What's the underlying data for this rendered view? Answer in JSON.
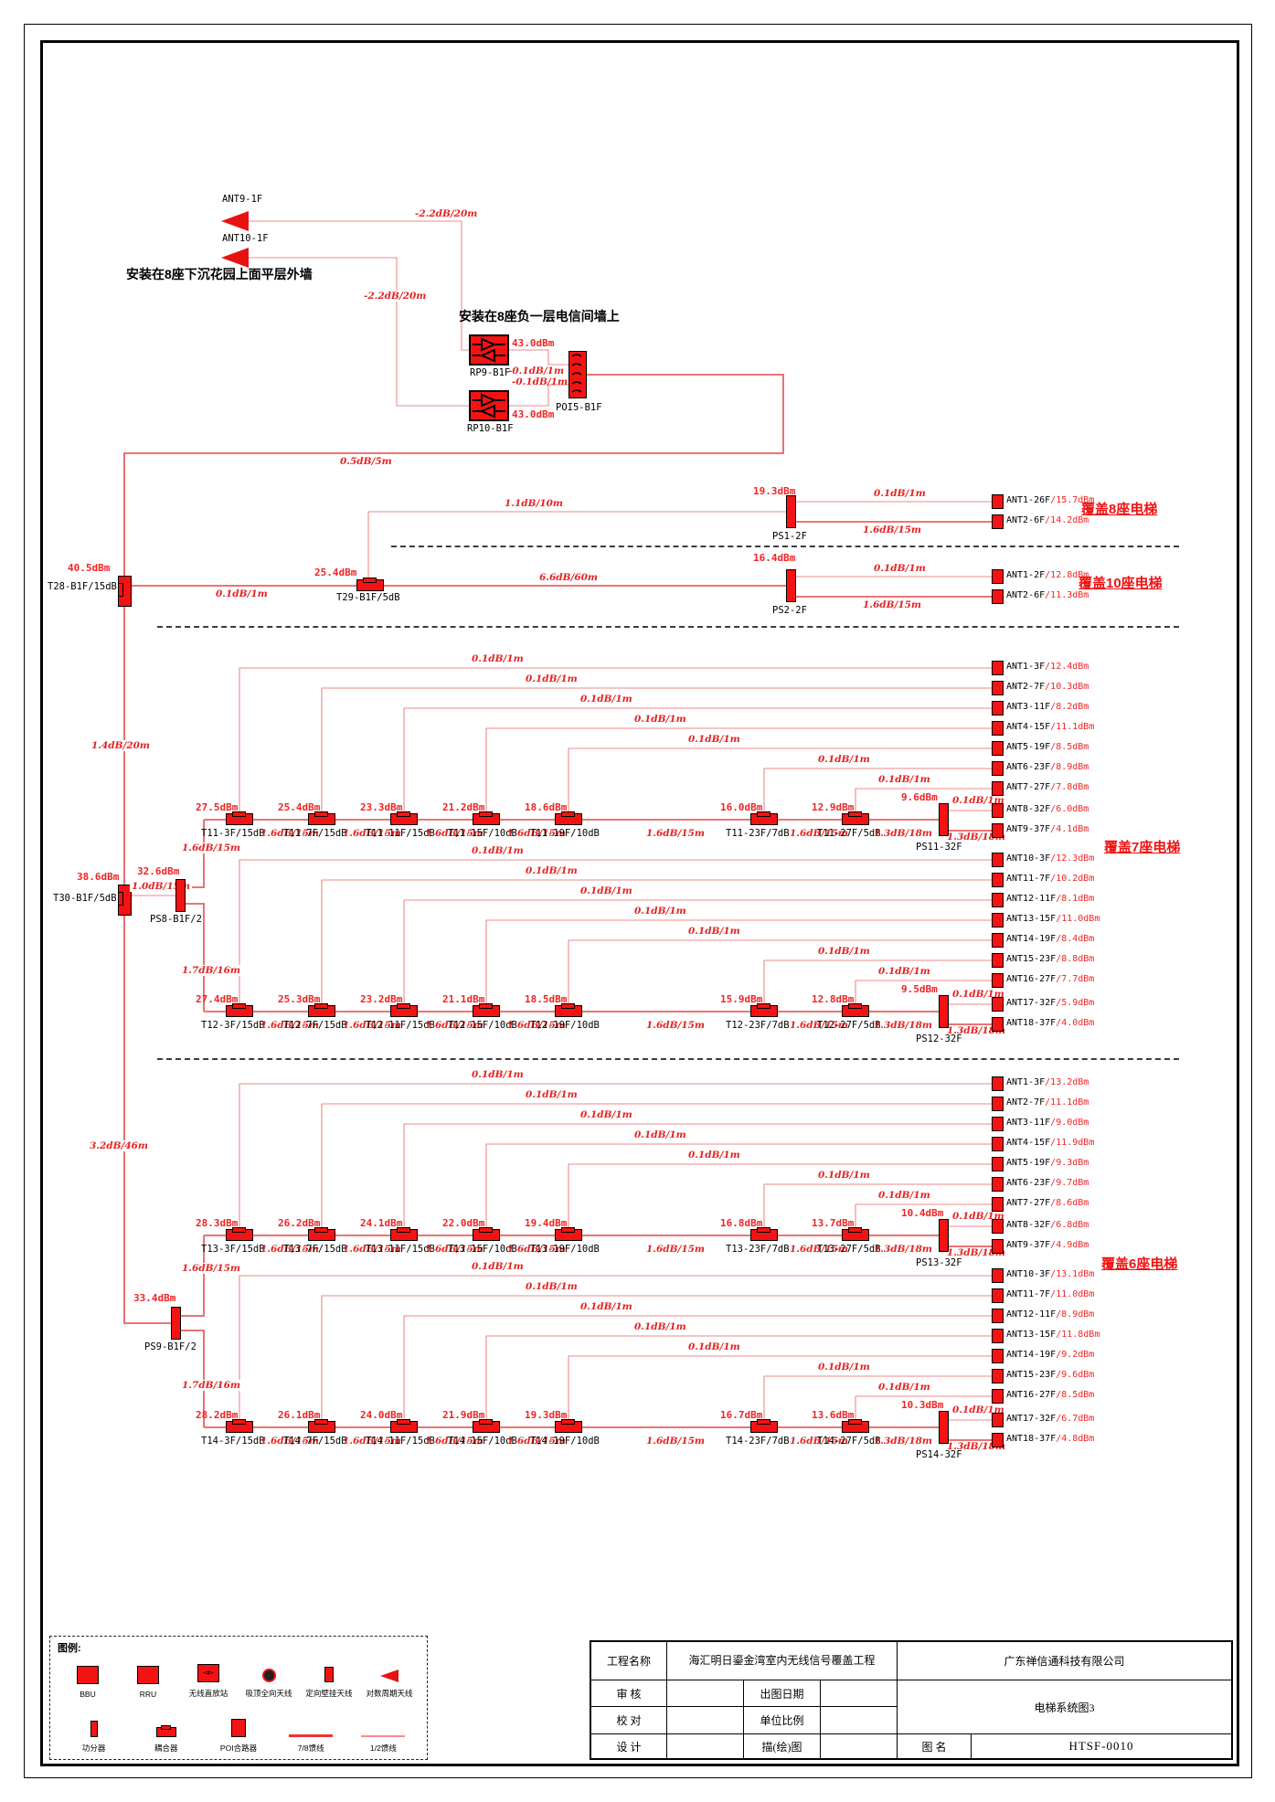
{
  "top": {
    "ant9": {
      "name": "ANT9-1F"
    },
    "ant10": {
      "name": "ANT10-1F"
    },
    "note_garden": "安装在8座下沉花园上面平层外墙",
    "note_telecom": "安装在8座负一层电信间墙上",
    "cable_ant9": "-2.2dB/20m",
    "cable_ant10": "-2.2dB/20m",
    "rp9": {
      "name": "RP9-B1F",
      "dbm": "43.0dBm",
      "out_cable": "-0.1dB/1m"
    },
    "rp10": {
      "name": "RP10-B1F",
      "dbm": "43.0dBm",
      "out_cable": "-0.1dB/1m"
    },
    "poi": {
      "name": "POI5-B1F",
      "out_cable": "0.5dB/5m"
    }
  },
  "risers": {
    "t28": {
      "name": "T28-B1F/15dB",
      "dbm": "40.5dBm"
    },
    "c_t28_t29": "0.1dB/1m",
    "t29": {
      "name": "T29-B1F/5dB",
      "dbm": "25.4dBm"
    },
    "c_t29_ps1": "1.1dB/10m",
    "c_t29_ps2": "6.6dB/60m",
    "ps1": {
      "name": "PS1-2F",
      "dbm": "19.3dBm",
      "title": "覆盖8座电梯",
      "outs": [
        {
          "cable": "0.1dB/1m",
          "ant": "ANT1-26F",
          "dbm": "/15.7dBm"
        },
        {
          "cable": "1.6dB/15m",
          "ant": "ANT2-6F",
          "dbm": "/14.2dBm"
        }
      ]
    },
    "ps2": {
      "name": "PS2-2F",
      "dbm": "16.4dBm",
      "title": "覆盖10座电梯",
      "outs": [
        {
          "cable": "0.1dB/1m",
          "ant": "ANT1-2F",
          "dbm": "/12.8dBm"
        },
        {
          "cable": "1.6dB/15m",
          "ant": "ANT2-6F",
          "dbm": "/11.3dBm"
        }
      ]
    },
    "trunk_t28_t30": "1.4dB/20m",
    "trunk_t30_ps9": "3.2dB/46m",
    "t30": {
      "name": "T30-B1F/5dB",
      "dbm": "38.6dBm"
    },
    "c_t30_ps8": "1.0dB/15m",
    "ps8": {
      "name": "PS8-B1F/2",
      "dbm": "32.6dBm",
      "up": "1.6dB/15m",
      "down": "1.7dB/16m"
    },
    "ps9": {
      "name": "PS9-B1F/2",
      "dbm": "33.4dBm",
      "up": "1.6dB/15m",
      "down": "1.7dB/16m"
    }
  },
  "trees": [
    {
      "title": "覆盖7座电梯",
      "chains": [
        {
          "inter_cable": "1.6dB/15m",
          "couplers": [
            {
              "dbm": "27.5dBm",
              "name": "T11-3F/15dB"
            },
            {
              "dbm": "25.4dBm",
              "name": "T11-7F/15dB"
            },
            {
              "dbm": "23.3dBm",
              "name": "T11-11F/15dB"
            },
            {
              "dbm": "21.2dBm",
              "name": "T11-15F/10dB"
            },
            {
              "dbm": "18.6dBm",
              "name": "T11-19F/10dB"
            },
            {
              "dbm": "16.0dBm",
              "name": "T11-23F/7dB"
            },
            {
              "dbm": "12.9dBm",
              "name": "T11-27F/5dB"
            }
          ],
          "taps": [
            {
              "cable": "0.1dB/1m",
              "ant": "ANT1-3F",
              "dbm": "/12.4dBm"
            },
            {
              "cable": "0.1dB/1m",
              "ant": "ANT2-7F",
              "dbm": "/10.3dBm"
            },
            {
              "cable": "0.1dB/1m",
              "ant": "ANT3-11F",
              "dbm": "/8.2dBm"
            },
            {
              "cable": "0.1dB/1m",
              "ant": "ANT4-15F",
              "dbm": "/11.1dBm"
            },
            {
              "cable": "0.1dB/1m",
              "ant": "ANT5-19F",
              "dbm": "/8.5dBm"
            },
            {
              "cable": "0.1dB/1m",
              "ant": "ANT6-23F",
              "dbm": "/8.9dBm"
            },
            {
              "cable": "0.1dB/1m",
              "ant": "ANT7-27F",
              "dbm": "/7.8dBm"
            }
          ],
          "end": {
            "cable": "1.3dB/18m",
            "ps": "PS11-32F",
            "dbm": "9.6dBm",
            "outs": [
              {
                "cable": "0.1dB/1m",
                "ant": "ANT8-32F",
                "dbm": "/6.0dBm"
              },
              {
                "cable": "1.3dB/18m",
                "ant": "ANT9-37F",
                "dbm": "/4.1dBm"
              }
            ]
          }
        },
        {
          "inter_cable": "1.6dB/15m",
          "couplers": [
            {
              "dbm": "27.4dBm",
              "name": "T12-3F/15dB"
            },
            {
              "dbm": "25.3dBm",
              "name": "T12-7F/15dB"
            },
            {
              "dbm": "23.2dBm",
              "name": "T12-11F/15dB"
            },
            {
              "dbm": "21.1dBm",
              "name": "T12-15F/10dB"
            },
            {
              "dbm": "18.5dBm",
              "name": "T12-19F/10dB"
            },
            {
              "dbm": "15.9dBm",
              "name": "T12-23F/7dB"
            },
            {
              "dbm": "12.8dBm",
              "name": "T12-27F/5dB"
            }
          ],
          "taps": [
            {
              "cable": "0.1dB/1m",
              "ant": "ANT10-3F",
              "dbm": "/12.3dBm"
            },
            {
              "cable": "0.1dB/1m",
              "ant": "ANT11-7F",
              "dbm": "/10.2dBm"
            },
            {
              "cable": "0.1dB/1m",
              "ant": "ANT12-11F",
              "dbm": "/8.1dBm"
            },
            {
              "cable": "0.1dB/1m",
              "ant": "ANT13-15F",
              "dbm": "/11.0dBm"
            },
            {
              "cable": "0.1dB/1m",
              "ant": "ANT14-19F",
              "dbm": "/8.4dBm"
            },
            {
              "cable": "0.1dB/1m",
              "ant": "ANT15-23F",
              "dbm": "/8.8dBm"
            },
            {
              "cable": "0.1dB/1m",
              "ant": "ANT16-27F",
              "dbm": "/7.7dBm"
            }
          ],
          "end": {
            "cable": "1.3dB/18m",
            "ps": "PS12-32F",
            "dbm": "9.5dBm",
            "outs": [
              {
                "cable": "0.1dB/1m",
                "ant": "ANT17-32F",
                "dbm": "/5.9dBm"
              },
              {
                "cable": "1.3dB/18m",
                "ant": "ANT18-37F",
                "dbm": "/4.0dBm"
              }
            ]
          }
        }
      ]
    },
    {
      "title": "覆盖6座电梯",
      "chains": [
        {
          "inter_cable": "1.6dB/15m",
          "couplers": [
            {
              "dbm": "28.3dBm",
              "name": "T13-3F/15dB"
            },
            {
              "dbm": "26.2dBm",
              "name": "T13-7F/15dB"
            },
            {
              "dbm": "24.1dBm",
              "name": "T13-11F/15dB"
            },
            {
              "dbm": "22.0dBm",
              "name": "T13-15F/10dB"
            },
            {
              "dbm": "19.4dBm",
              "name": "T13-19F/10dB"
            },
            {
              "dbm": "16.8dBm",
              "name": "T13-23F/7dB"
            },
            {
              "dbm": "13.7dBm",
              "name": "T13-27F/5dB"
            }
          ],
          "taps": [
            {
              "cable": "0.1dB/1m",
              "ant": "ANT1-3F",
              "dbm": "/13.2dBm"
            },
            {
              "cable": "0.1dB/1m",
              "ant": "ANT2-7F",
              "dbm": "/11.1dBm"
            },
            {
              "cable": "0.1dB/1m",
              "ant": "ANT3-11F",
              "dbm": "/9.0dBm"
            },
            {
              "cable": "0.1dB/1m",
              "ant": "ANT4-15F",
              "dbm": "/11.9dBm"
            },
            {
              "cable": "0.1dB/1m",
              "ant": "ANT5-19F",
              "dbm": "/9.3dBm"
            },
            {
              "cable": "0.1dB/1m",
              "ant": "ANT6-23F",
              "dbm": "/9.7dBm"
            },
            {
              "cable": "0.1dB/1m",
              "ant": "ANT7-27F",
              "dbm": "/8.6dBm"
            }
          ],
          "end": {
            "cable": "1.3dB/18m",
            "ps": "PS13-32F",
            "dbm": "10.4dBm",
            "outs": [
              {
                "cable": "0.1dB/1m",
                "ant": "ANT8-32F",
                "dbm": "/6.8dBm"
              },
              {
                "cable": "1.3dB/18m",
                "ant": "ANT9-37F",
                "dbm": "/4.9dBm"
              }
            ]
          }
        },
        {
          "inter_cable": "1.6dB/15m",
          "couplers": [
            {
              "dbm": "28.2dBm",
              "name": "T14-3F/15dB"
            },
            {
              "dbm": "26.1dBm",
              "name": "T14-7F/15dB"
            },
            {
              "dbm": "24.0dBm",
              "name": "T14-11F/15dB"
            },
            {
              "dbm": "21.9dBm",
              "name": "T14-15F/10dB"
            },
            {
              "dbm": "19.3dBm",
              "name": "T14-19F/10dB"
            },
            {
              "dbm": "16.7dBm",
              "name": "T14-23F/7dB"
            },
            {
              "dbm": "13.6dBm",
              "name": "T14-27F/5dB"
            }
          ],
          "taps": [
            {
              "cable": "0.1dB/1m",
              "ant": "ANT10-3F",
              "dbm": "/13.1dBm"
            },
            {
              "cable": "0.1dB/1m",
              "ant": "ANT11-7F",
              "dbm": "/11.0dBm"
            },
            {
              "cable": "0.1dB/1m",
              "ant": "ANT12-11F",
              "dbm": "/8.9dBm"
            },
            {
              "cable": "0.1dB/1m",
              "ant": "ANT13-15F",
              "dbm": "/11.8dBm"
            },
            {
              "cable": "0.1dB/1m",
              "ant": "ANT14-19F",
              "dbm": "/9.2dBm"
            },
            {
              "cable": "0.1dB/1m",
              "ant": "ANT15-23F",
              "dbm": "/9.6dBm"
            },
            {
              "cable": "0.1dB/1m",
              "ant": "ANT16-27F",
              "dbm": "/8.5dBm"
            }
          ],
          "end": {
            "cable": "1.3dB/18m",
            "ps": "PS14-32F",
            "dbm": "10.3dBm",
            "outs": [
              {
                "cable": "0.1dB/1m",
                "ant": "ANT17-32F",
                "dbm": "/6.7dBm"
              },
              {
                "cable": "1.3dB/18m",
                "ant": "ANT18-37F",
                "dbm": "/4.8dBm"
              }
            ]
          }
        }
      ]
    }
  ],
  "legend": {
    "title": "图例:",
    "row1": [
      {
        "label": "BBU"
      },
      {
        "label": "RRU"
      },
      {
        "label": "无线直放站"
      },
      {
        "label": "吸顶全向天线"
      },
      {
        "label": "定向壁挂天线"
      },
      {
        "label": "对数周期天线"
      }
    ],
    "row2": [
      {
        "label": "功分器"
      },
      {
        "label": "耦合器"
      },
      {
        "label": "POI合路器"
      },
      {
        "label": "7/8馈线"
      },
      {
        "label": "1/2馈线"
      }
    ]
  },
  "titleblock": {
    "project_label": "工程名称",
    "project_name": "海汇明日鎏金湾室内无线信号覆盖工程",
    "company": "广东禅信通科技有限公司",
    "review": "审 核",
    "date_label": "出图日期",
    "check": "校 对",
    "scale_label": "单位比例",
    "design": "设 计",
    "trace_label": "描(绘)图",
    "drawing_label": "图 名",
    "drawing_title": "电梯系统图3",
    "drawing_no": "HTSF-0010"
  },
  "colors": {
    "component_red": "#f31313",
    "wire_red": "#ef8080",
    "text_red": "#f22424",
    "accent_red": "#f21212"
  }
}
